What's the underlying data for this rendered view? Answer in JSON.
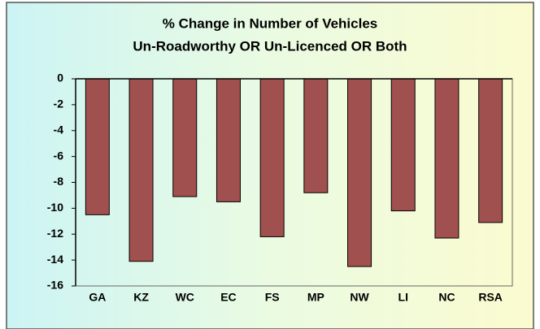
{
  "chart_data": {
    "type": "bar",
    "title": "% Change in Number of Vehicles",
    "subtitle": "Un-Roadworthy OR Un-Licenced OR Both",
    "categories": [
      "GA",
      "KZ",
      "WC",
      "EC",
      "FS",
      "MP",
      "NW",
      "LI",
      "NC",
      "RSA"
    ],
    "values": [
      -10.5,
      -14.1,
      -9.1,
      -9.5,
      -12.2,
      -8.8,
      -14.5,
      -10.2,
      -12.3,
      -11.1
    ],
    "color": "#a0504f",
    "ylim": [
      -16,
      0
    ],
    "yticks": [
      0,
      -2,
      -4,
      -6,
      -8,
      -10,
      -12,
      -14,
      -16
    ],
    "grid": false
  }
}
